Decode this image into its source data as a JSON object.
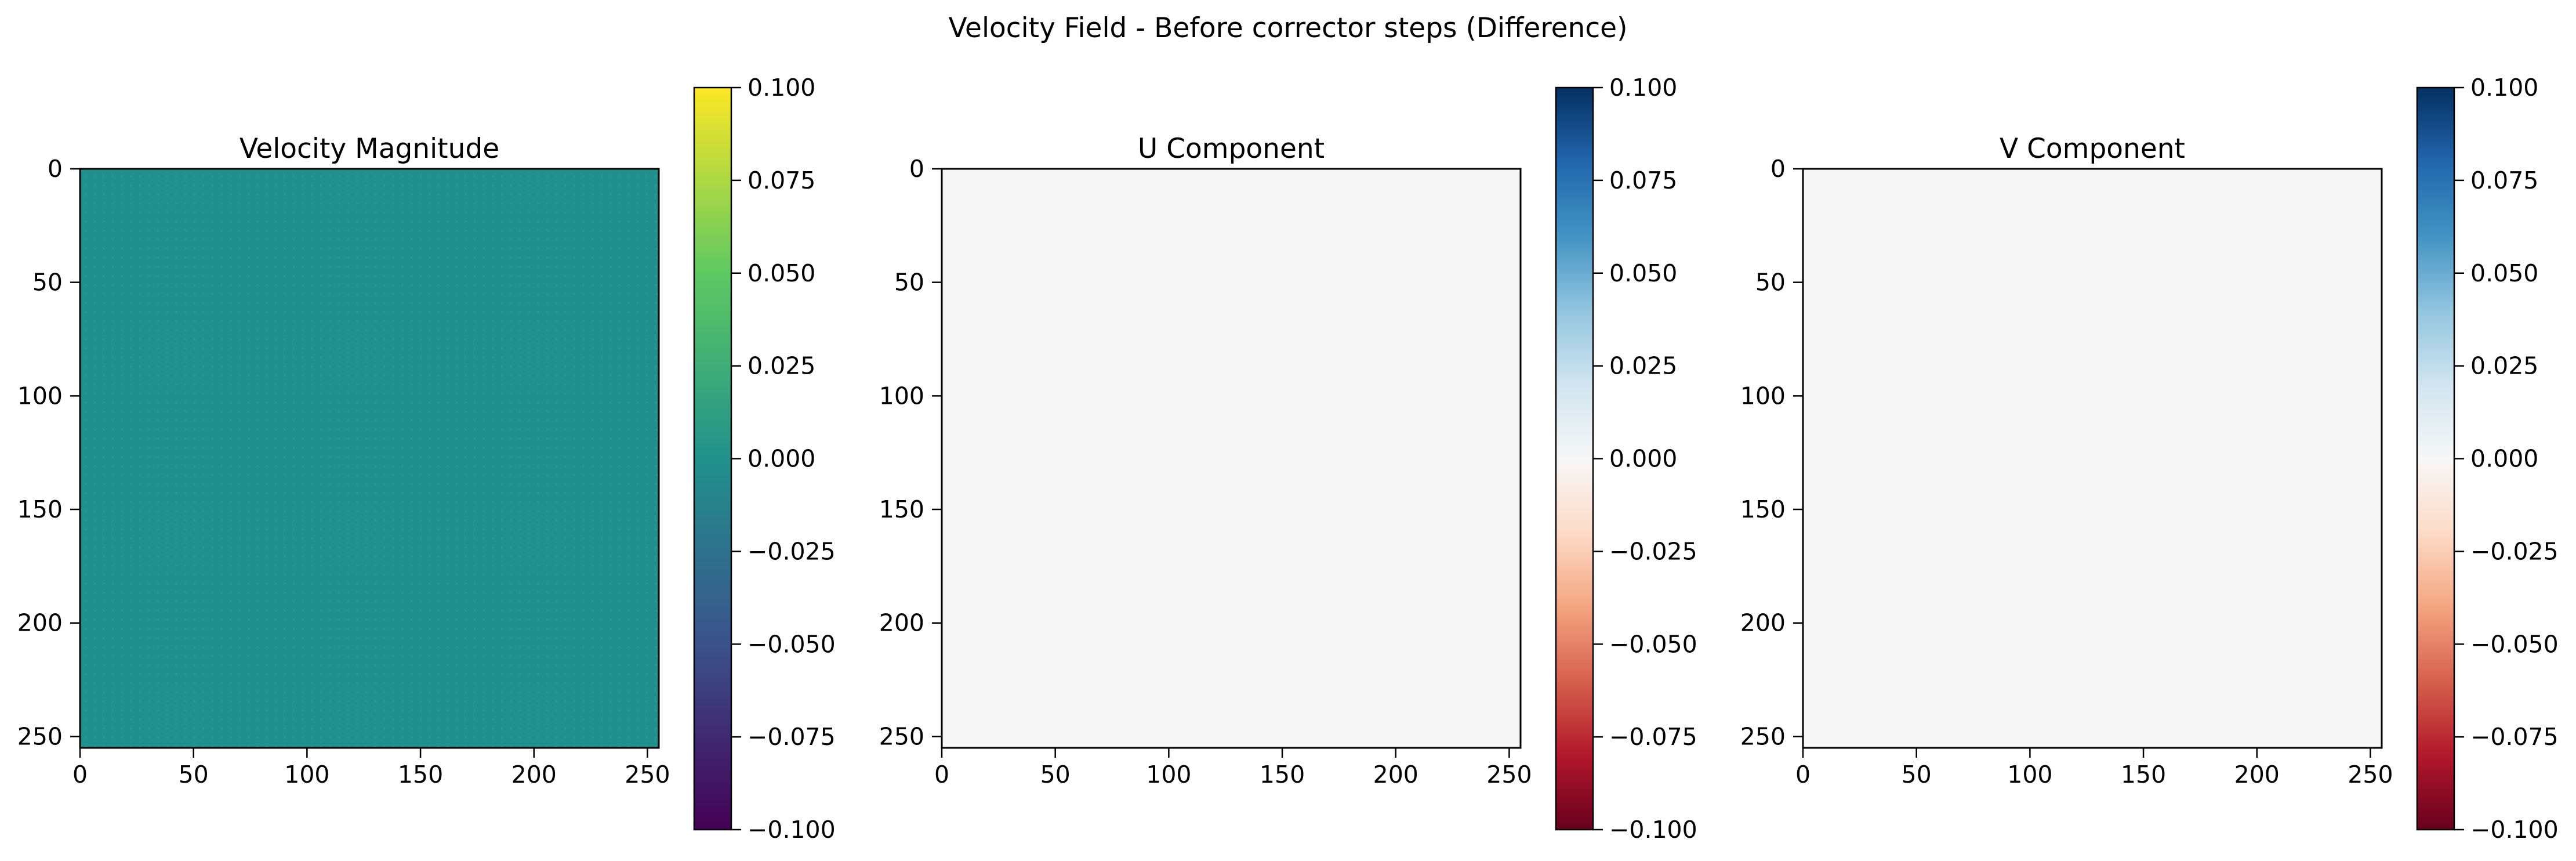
{
  "figure": {
    "title": "Velocity Field - Before corrector steps (Difference)"
  },
  "chart_data": [
    {
      "type": "heatmap",
      "title": "Velocity Magnitude",
      "xlim": [
        0,
        255
      ],
      "ylim": [
        255,
        0
      ],
      "x_ticks": [
        "0",
        "50",
        "100",
        "150",
        "200",
        "250"
      ],
      "y_ticks": [
        "0",
        "50",
        "100",
        "150",
        "200",
        "250"
      ],
      "colormap": "viridis",
      "fill_color": "#21908d",
      "grid_texture": "faint dotted grid",
      "value": 0.0,
      "colorbar": {
        "range": [
          -0.1,
          0.1
        ],
        "ticks": [
          "0.100",
          "0.075",
          "0.050",
          "0.025",
          "0.000",
          "−0.025",
          "−0.050",
          "−0.075",
          "−0.100"
        ],
        "stops": [
          "#440154",
          "#3b528b",
          "#21918c",
          "#5ec962",
          "#fde725"
        ]
      }
    },
    {
      "type": "heatmap",
      "title": "U Component",
      "xlim": [
        0,
        255
      ],
      "ylim": [
        255,
        0
      ],
      "x_ticks": [
        "0",
        "50",
        "100",
        "150",
        "200",
        "250"
      ],
      "y_ticks": [
        "0",
        "50",
        "100",
        "150",
        "200",
        "250"
      ],
      "colormap": "RdBu",
      "fill_color": "#f6f6f6",
      "value": 0.0,
      "colorbar": {
        "range": [
          -0.1,
          0.1
        ],
        "ticks": [
          "0.100",
          "0.075",
          "0.050",
          "0.025",
          "0.000",
          "−0.025",
          "−0.050",
          "−0.075",
          "−0.100"
        ],
        "stops": [
          "#67001f",
          "#b2182b",
          "#d6604d",
          "#f4a582",
          "#fddbc7",
          "#f7f7f7",
          "#d1e5f0",
          "#92c5de",
          "#4393c3",
          "#2166ac",
          "#053061"
        ]
      }
    },
    {
      "type": "heatmap",
      "title": "V Component",
      "xlim": [
        0,
        255
      ],
      "ylim": [
        255,
        0
      ],
      "x_ticks": [
        "0",
        "50",
        "100",
        "150",
        "200",
        "250"
      ],
      "y_ticks": [
        "0",
        "50",
        "100",
        "150",
        "200",
        "250"
      ],
      "colormap": "RdBu",
      "fill_color": "#f6f6f6",
      "value": 0.0,
      "colorbar": {
        "range": [
          -0.1,
          0.1
        ],
        "ticks": [
          "0.100",
          "0.075",
          "0.050",
          "0.025",
          "0.000",
          "−0.025",
          "−0.050",
          "−0.075",
          "−0.100"
        ],
        "stops": [
          "#67001f",
          "#b2182b",
          "#d6604d",
          "#f4a582",
          "#fddbc7",
          "#f7f7f7",
          "#d1e5f0",
          "#92c5de",
          "#4393c3",
          "#2166ac",
          "#053061"
        ]
      }
    }
  ]
}
